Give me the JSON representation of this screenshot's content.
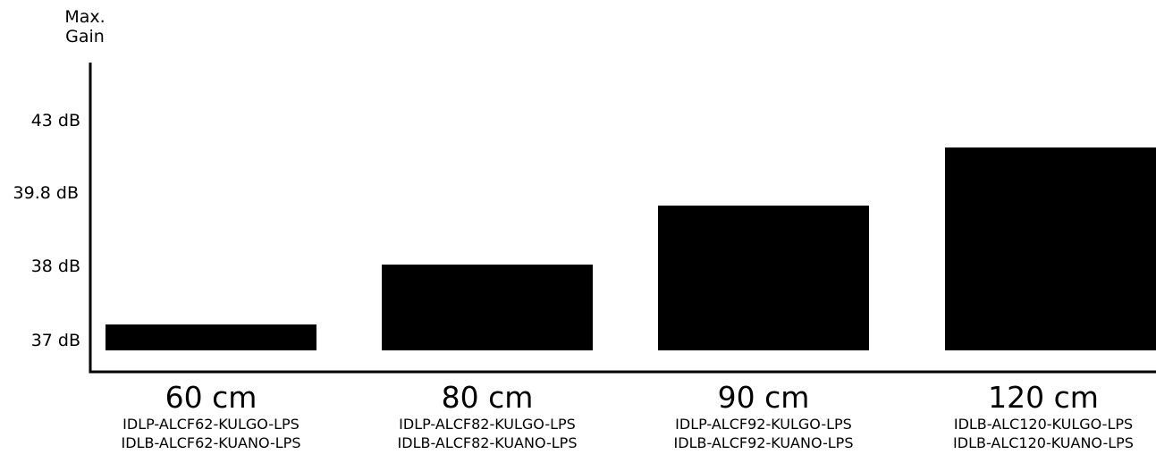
{
  "chart_data": {
    "type": "bar",
    "ylabel_lines": [
      "Max.",
      "Gain"
    ],
    "ytick_labels": [
      "37 dB",
      "38 dB",
      "39.8 dB",
      "43 dB"
    ],
    "categories": [
      "60 cm",
      "80 cm",
      "90 cm",
      "120 cm"
    ],
    "models": [
      [
        "IDLP-ALCF62-KULGO-LPS",
        "IDLB-ALCF62-KUANO-LPS"
      ],
      [
        "IDLP-ALCF82-KULGO-LPS",
        "IDLB-ALCF82-KUANO-LPS"
      ],
      [
        "IDLP-ALCF92-KULGO-LPS",
        "IDLB-ALCF92-KUANO-LPS"
      ],
      [
        "IDLB-ALC120-KULGO-LPS",
        "IDLB-ALC120-KUANO-LPS"
      ]
    ],
    "values": [
      37,
      38,
      39.8,
      43
    ],
    "scale": "non-linear (evenly spaced tick labels)",
    "grid": false,
    "bar_color": "#000000"
  }
}
